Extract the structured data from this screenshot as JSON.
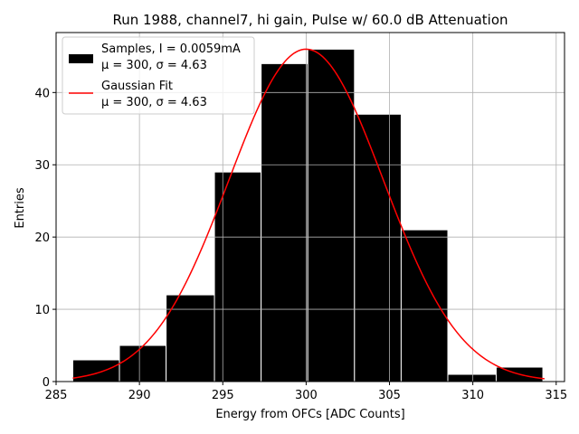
{
  "chart_data": {
    "type": "bar",
    "title": "Run 1988, channel7, hi gain, Pulse w/ 60.0 dB Attenuation",
    "xlabel": "Energy from OFCs [ADC Counts]",
    "ylabel": "Entries",
    "xlim": [
      285,
      315.5
    ],
    "ylim": [
      0,
      48.3
    ],
    "xticks": [
      285,
      290,
      295,
      300,
      305,
      310,
      315
    ],
    "yticks": [
      0,
      10,
      20,
      30,
      40
    ],
    "grid": true,
    "bins": [
      {
        "left": 286.0,
        "right": 288.8,
        "count": 3
      },
      {
        "left": 288.8,
        "right": 291.6,
        "count": 5
      },
      {
        "left": 291.6,
        "right": 294.5,
        "count": 12
      },
      {
        "left": 294.5,
        "right": 297.3,
        "count": 29
      },
      {
        "left": 297.3,
        "right": 300.1,
        "count": 44
      },
      {
        "left": 300.1,
        "right": 302.9,
        "count": 46
      },
      {
        "left": 302.9,
        "right": 305.7,
        "count": 37
      },
      {
        "left": 305.7,
        "right": 308.5,
        "count": 21
      },
      {
        "left": 308.5,
        "right": 311.4,
        "count": 1
      },
      {
        "left": 311.4,
        "right": 314.2,
        "count": 2
      }
    ],
    "fit": {
      "type": "gaussian",
      "mu": 300.0,
      "sigma": 4.63,
      "amplitude": 46.0,
      "x_range": [
        286.0,
        314.3
      ],
      "color": "#ff0000"
    },
    "bar_color": "#000000",
    "legend": {
      "position": "top-left",
      "entries": [
        {
          "line1": "Samples, I = 0.0059mA",
          "line2": "μ = 300, σ = 4.63",
          "kind": "patch",
          "color": "#000000"
        },
        {
          "line1": "Gaussian Fit",
          "line2": "μ = 300, σ = 4.63",
          "kind": "line",
          "color": "#ff0000"
        }
      ]
    }
  }
}
